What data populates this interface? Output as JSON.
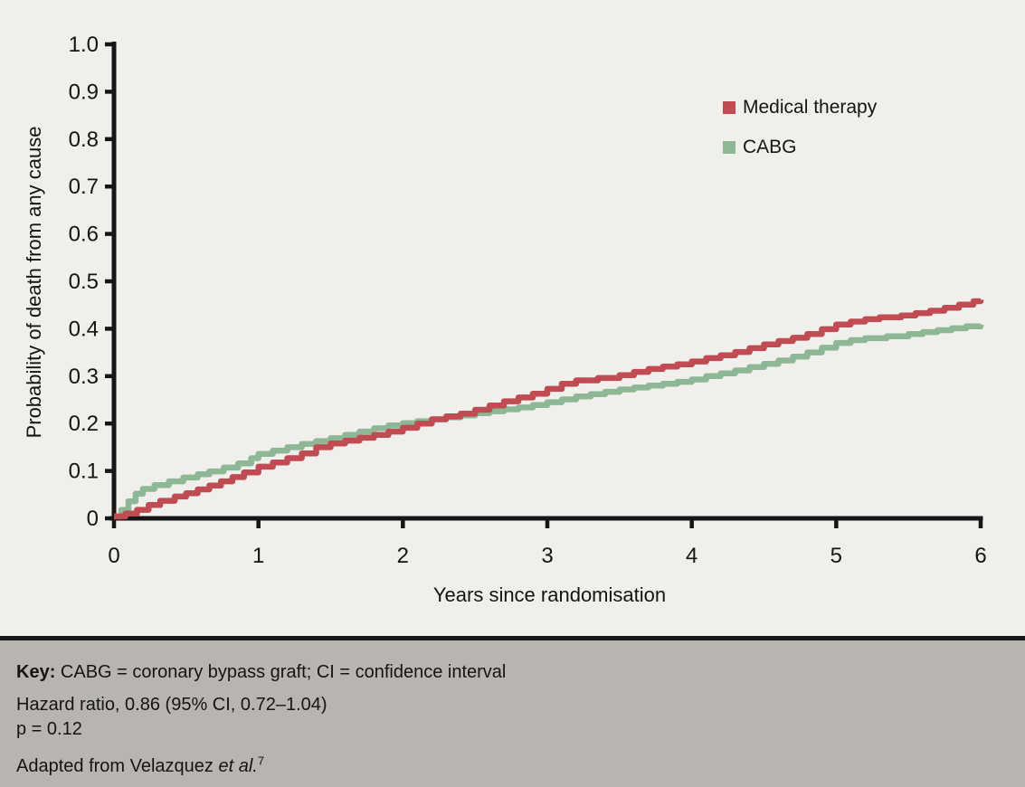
{
  "chart_data": {
    "type": "line",
    "variant": "kaplan-meier-step",
    "title": "",
    "xlabel": "Years since randomisation",
    "ylabel": "Probability of death from any cause",
    "xlim": [
      0,
      6
    ],
    "ylim": [
      0,
      1.0
    ],
    "grid": false,
    "legend_position": "inside-top-right",
    "axis_color": "#161616",
    "background_color": "#f0efeb",
    "xticks": [
      0,
      1,
      2,
      3,
      4,
      5,
      6
    ],
    "xtick_labels": [
      "0",
      "1",
      "2",
      "3",
      "4",
      "5",
      "6"
    ],
    "yticks": [
      0,
      0.1,
      0.2,
      0.3,
      0.4,
      0.5,
      0.6,
      0.7,
      0.8,
      0.9,
      1.0
    ],
    "ytick_labels": [
      "0",
      "0.1",
      "0.2",
      "0.3",
      "0.4",
      "0.5",
      "0.6",
      "0.7",
      "0.8",
      "0.9",
      "1.0"
    ],
    "series": [
      {
        "id": "medical-therapy",
        "name": "Medical therapy",
        "color": "#c04b52",
        "points": [
          [
            0,
            0.004
          ],
          [
            0.08,
            0.01
          ],
          [
            0.16,
            0.018
          ],
          [
            0.24,
            0.028
          ],
          [
            0.32,
            0.037
          ],
          [
            0.42,
            0.046
          ],
          [
            0.5,
            0.053
          ],
          [
            0.58,
            0.061
          ],
          [
            0.66,
            0.069
          ],
          [
            0.74,
            0.078
          ],
          [
            0.82,
            0.087
          ],
          [
            0.9,
            0.097
          ],
          [
            1.0,
            0.109
          ],
          [
            1.1,
            0.118
          ],
          [
            1.2,
            0.127
          ],
          [
            1.3,
            0.137
          ],
          [
            1.4,
            0.15
          ],
          [
            1.5,
            0.158
          ],
          [
            1.6,
            0.164
          ],
          [
            1.7,
            0.17
          ],
          [
            1.8,
            0.176
          ],
          [
            1.9,
            0.183
          ],
          [
            2.0,
            0.191
          ],
          [
            2.1,
            0.2
          ],
          [
            2.2,
            0.209
          ],
          [
            2.3,
            0.215
          ],
          [
            2.4,
            0.221
          ],
          [
            2.5,
            0.229
          ],
          [
            2.6,
            0.238
          ],
          [
            2.7,
            0.247
          ],
          [
            2.8,
            0.255
          ],
          [
            2.9,
            0.263
          ],
          [
            3.0,
            0.273
          ],
          [
            3.1,
            0.284
          ],
          [
            3.2,
            0.291
          ],
          [
            3.35,
            0.296
          ],
          [
            3.5,
            0.302
          ],
          [
            3.6,
            0.309
          ],
          [
            3.7,
            0.315
          ],
          [
            3.8,
            0.32
          ],
          [
            3.9,
            0.325
          ],
          [
            4.0,
            0.331
          ],
          [
            4.1,
            0.338
          ],
          [
            4.2,
            0.344
          ],
          [
            4.3,
            0.351
          ],
          [
            4.4,
            0.359
          ],
          [
            4.5,
            0.367
          ],
          [
            4.6,
            0.374
          ],
          [
            4.7,
            0.381
          ],
          [
            4.8,
            0.389
          ],
          [
            4.9,
            0.399
          ],
          [
            5.0,
            0.409
          ],
          [
            5.1,
            0.415
          ],
          [
            5.2,
            0.42
          ],
          [
            5.3,
            0.424
          ],
          [
            5.45,
            0.428
          ],
          [
            5.55,
            0.433
          ],
          [
            5.65,
            0.438
          ],
          [
            5.75,
            0.444
          ],
          [
            5.85,
            0.451
          ],
          [
            5.95,
            0.458
          ],
          [
            6.0,
            0.461
          ]
        ]
      },
      {
        "id": "cabg",
        "name": "CABG",
        "color": "#8db795",
        "points": [
          [
            0,
            0.004
          ],
          [
            0.05,
            0.018
          ],
          [
            0.1,
            0.036
          ],
          [
            0.15,
            0.052
          ],
          [
            0.2,
            0.062
          ],
          [
            0.28,
            0.07
          ],
          [
            0.38,
            0.078
          ],
          [
            0.48,
            0.086
          ],
          [
            0.58,
            0.093
          ],
          [
            0.66,
            0.099
          ],
          [
            0.76,
            0.107
          ],
          [
            0.86,
            0.116
          ],
          [
            0.95,
            0.127
          ],
          [
            1.0,
            0.136
          ],
          [
            1.1,
            0.143
          ],
          [
            1.2,
            0.15
          ],
          [
            1.3,
            0.157
          ],
          [
            1.4,
            0.163
          ],
          [
            1.5,
            0.169
          ],
          [
            1.6,
            0.176
          ],
          [
            1.7,
            0.183
          ],
          [
            1.8,
            0.19
          ],
          [
            1.9,
            0.196
          ],
          [
            2.0,
            0.201
          ],
          [
            2.1,
            0.205
          ],
          [
            2.2,
            0.209
          ],
          [
            2.3,
            0.213
          ],
          [
            2.4,
            0.217
          ],
          [
            2.5,
            0.222
          ],
          [
            2.6,
            0.226
          ],
          [
            2.7,
            0.23
          ],
          [
            2.8,
            0.234
          ],
          [
            2.9,
            0.239
          ],
          [
            3.0,
            0.245
          ],
          [
            3.1,
            0.251
          ],
          [
            3.2,
            0.257
          ],
          [
            3.3,
            0.262
          ],
          [
            3.4,
            0.267
          ],
          [
            3.5,
            0.272
          ],
          [
            3.6,
            0.276
          ],
          [
            3.7,
            0.28
          ],
          [
            3.8,
            0.284
          ],
          [
            3.9,
            0.288
          ],
          [
            4.0,
            0.293
          ],
          [
            4.1,
            0.3
          ],
          [
            4.2,
            0.306
          ],
          [
            4.3,
            0.312
          ],
          [
            4.4,
            0.319
          ],
          [
            4.5,
            0.326
          ],
          [
            4.6,
            0.333
          ],
          [
            4.7,
            0.341
          ],
          [
            4.8,
            0.35
          ],
          [
            4.9,
            0.36
          ],
          [
            5.0,
            0.37
          ],
          [
            5.1,
            0.376
          ],
          [
            5.2,
            0.38
          ],
          [
            5.35,
            0.384
          ],
          [
            5.5,
            0.389
          ],
          [
            5.6,
            0.393
          ],
          [
            5.7,
            0.397
          ],
          [
            5.8,
            0.401
          ],
          [
            5.9,
            0.405
          ],
          [
            6.0,
            0.409
          ]
        ]
      }
    ]
  },
  "legend": {
    "items": [
      {
        "label": "Medical therapy",
        "color": "#c04b52"
      },
      {
        "label": "CABG",
        "color": "#8db795"
      }
    ]
  },
  "footer": {
    "key_label": "Key:",
    "key_text": " CABG = coronary bypass graft; CI = confidence interval",
    "hazard_ratio": "Hazard ratio, 0.86 (95% CI, 0.72–1.04)",
    "p_value": "p = 0.12",
    "adapted_prefix": "Adapted from Velazquez ",
    "adapted_italic": "et al.",
    "adapted_superscript": "7",
    "background_color": "#b8b5b1"
  }
}
